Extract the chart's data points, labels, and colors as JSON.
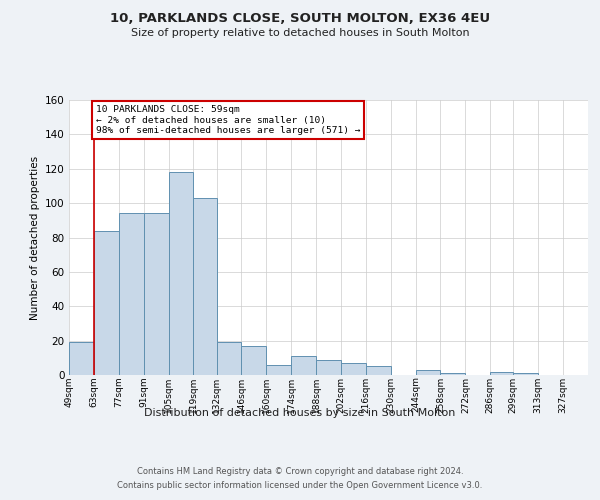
{
  "title": "10, PARKLANDS CLOSE, SOUTH MOLTON, EX36 4EU",
  "subtitle": "Size of property relative to detached houses in South Molton",
  "xlabel": "Distribution of detached houses by size in South Molton",
  "ylabel": "Number of detached properties",
  "footnote1": "Contains HM Land Registry data © Crown copyright and database right 2024.",
  "footnote2": "Contains public sector information licensed under the Open Government Licence v3.0.",
  "bar_left_edges": [
    49,
    63,
    77,
    91,
    105,
    119,
    132,
    146,
    160,
    174,
    188,
    202,
    216,
    230,
    244,
    258,
    272,
    286,
    299,
    313
  ],
  "bar_heights": [
    19,
    84,
    94,
    94,
    118,
    103,
    19,
    17,
    6,
    11,
    9,
    7,
    5,
    0,
    3,
    1,
    0,
    2,
    1,
    0
  ],
  "bar_widths": [
    14,
    14,
    14,
    14,
    14,
    13,
    14,
    14,
    14,
    14,
    14,
    14,
    14,
    14,
    14,
    14,
    14,
    13,
    14,
    14
  ],
  "tick_labels": [
    "49sqm",
    "63sqm",
    "77sqm",
    "91sqm",
    "105sqm",
    "119sqm",
    "132sqm",
    "146sqm",
    "160sqm",
    "174sqm",
    "188sqm",
    "202sqm",
    "216sqm",
    "230sqm",
    "244sqm",
    "258sqm",
    "272sqm",
    "286sqm",
    "299sqm",
    "313sqm",
    "327sqm"
  ],
  "tick_positions": [
    49,
    63,
    77,
    91,
    105,
    119,
    132,
    146,
    160,
    174,
    188,
    202,
    216,
    230,
    244,
    258,
    272,
    286,
    299,
    313,
    327
  ],
  "bar_fill_color": "#c8d8e8",
  "bar_edge_color": "#6090b0",
  "marker_line_x": 63,
  "marker_line_color": "#cc0000",
  "annotation_text1": "10 PARKLANDS CLOSE: 59sqm",
  "annotation_text2": "← 2% of detached houses are smaller (10)",
  "annotation_text3": "98% of semi-detached houses are larger (571) →",
  "annotation_box_color": "#cc0000",
  "ylim": [
    0,
    160
  ],
  "xlim": [
    49,
    341
  ],
  "yticks": [
    0,
    20,
    40,
    60,
    80,
    100,
    120,
    140,
    160
  ],
  "bg_color": "#eef2f6",
  "plot_bg_color": "#ffffff",
  "grid_color": "#cccccc"
}
